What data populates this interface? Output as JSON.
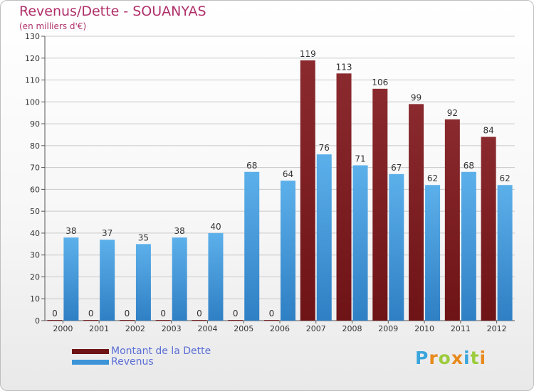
{
  "header": {
    "title": "Revenus/Dette - SOUANYAS",
    "subtitle": "(en milliers d'€)"
  },
  "logo": {
    "text": "Proxiti",
    "letter_colors": [
      "#3aa5dc",
      "#e8891c",
      "#9ccc3d",
      "#e8891c",
      "#3aa5dc",
      "#9ccc3d",
      "#e8891c"
    ]
  },
  "colors": {
    "dette": "#6e1316",
    "revenus": "#3d95d8",
    "axis": "#555555",
    "grid": "#c8c8c8",
    "text": "#333333"
  },
  "chart_data": {
    "type": "bar",
    "title": "Revenus/Dette - SOUANYAS",
    "subtitle": "(en milliers d'€)",
    "categories": [
      "2000",
      "2001",
      "2002",
      "2003",
      "2004",
      "2005",
      "2006",
      "2007",
      "2008",
      "2009",
      "2010",
      "2011",
      "2012"
    ],
    "series": [
      {
        "name": "Montant de la Dette",
        "values": [
          0,
          0,
          0,
          0,
          0,
          0,
          0,
          119,
          113,
          106,
          99,
          92,
          84
        ]
      },
      {
        "name": "Revenus",
        "values": [
          38,
          37,
          35,
          38,
          40,
          68,
          64,
          76,
          71,
          67,
          62,
          68,
          62
        ]
      }
    ],
    "ylim": [
      0,
      130
    ],
    "yticks": [
      0,
      10,
      20,
      30,
      40,
      50,
      60,
      70,
      80,
      90,
      100,
      110,
      120,
      130
    ],
    "grid": true,
    "legend_position": "bottom-left"
  }
}
